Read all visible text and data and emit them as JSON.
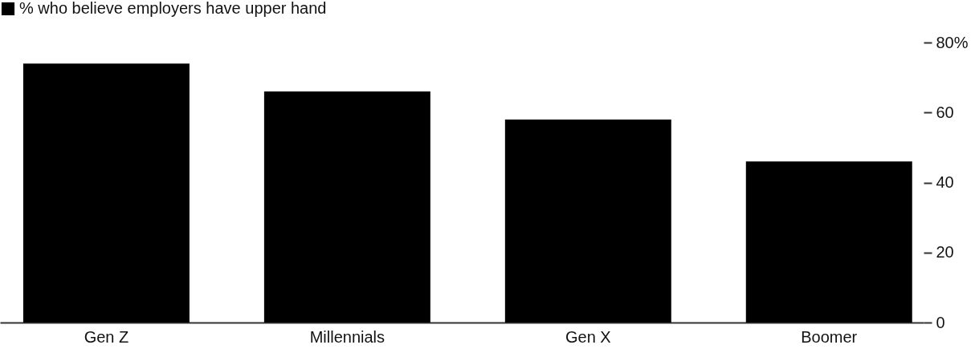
{
  "chart_data": {
    "type": "bar",
    "categories": [
      "Gen Z",
      "Millennials",
      "Gen X",
      "Boomer"
    ],
    "series": [
      {
        "name": "% who believe employers have upper hand",
        "color": "#000000",
        "values": [
          74,
          66,
          58,
          46
        ]
      }
    ],
    "ylim": [
      0,
      80
    ],
    "yticks": [
      0,
      20,
      40,
      60,
      {
        "value": 80,
        "label": "80%"
      }
    ],
    "grid": false,
    "legend": "top left"
  }
}
